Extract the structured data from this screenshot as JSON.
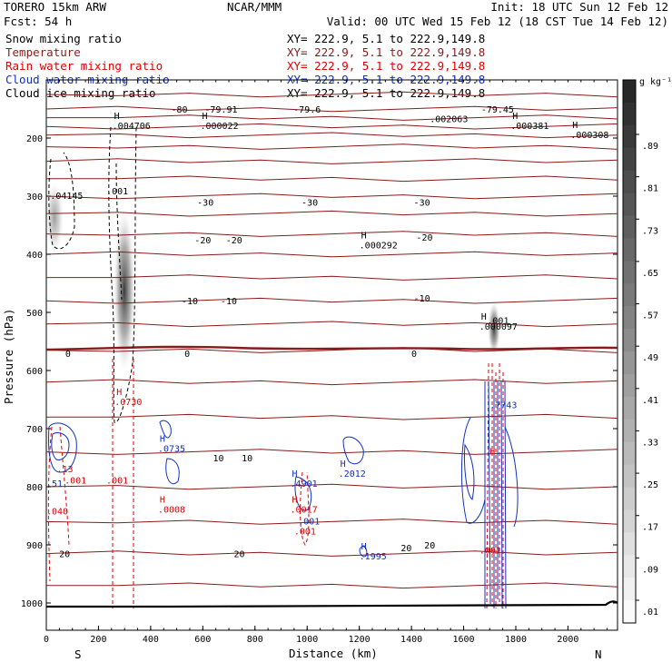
{
  "header": {
    "model": "TORERO  15km ARW",
    "org": "NCAR/MMM",
    "init": "Init: 18 UTC Sun 12 Feb 12",
    "fcst": "Fcst:   54 h",
    "valid": "Valid: 00 UTC Wed 15 Feb 12 (18 CST Tue 14 Feb 12)"
  },
  "legend": [
    {
      "name": "Snow mixing ratio",
      "xy": "XY= 222.9,  5.1 to 222.9,149.8",
      "color": "#000000"
    },
    {
      "name": "Temperature",
      "xy": "XY= 222.9,  5.1 to 222.9,149.8",
      "color": "#8b1a1a"
    },
    {
      "name": "Rain water mixing ratio",
      "xy": "XY= 222.9,  5.1 to 222.9,149.8",
      "color": "#e00000"
    },
    {
      "name": "Cloud water mixing ratio",
      "xy": "XY= 222.9,  5.1 to 222.9,149.8",
      "color": "#1030c8"
    },
    {
      "name": "Cloud ice mixing ratio",
      "xy": "XY= 222.9,  5.1 to 222.9,149.8",
      "color": "#000000"
    }
  ],
  "chart_data": {
    "type": "cross-section",
    "xlabel": "Distance (km)",
    "ylabel": "Pressure (hPa)",
    "xlim": [
      0,
      2190
    ],
    "ylim": [
      1050,
      140
    ],
    "xticks": [
      "0",
      "200",
      "400",
      "600",
      "800",
      "1000",
      "1200",
      "1400",
      "1600",
      "1800",
      "2000"
    ],
    "yticks": [
      "200",
      "300",
      "400",
      "500",
      "600",
      "700",
      "800",
      "900",
      "1000"
    ],
    "x_endpoints": {
      "left": "S",
      "right": "N"
    },
    "colorbar": {
      "unit": "g kg⁻¹",
      "labels": [
        ".89",
        ".81",
        ".73",
        ".65",
        ".57",
        ".49",
        ".41",
        ".33",
        ".25",
        ".17",
        ".09",
        ".01"
      ]
    },
    "temperature_isotherms": [
      {
        "label": "-80",
        "x": 510,
        "p": 150
      },
      {
        "label": "-79.91",
        "x": 670,
        "p": 150
      },
      {
        "label": "-79.6",
        "x": 1000,
        "p": 150
      },
      {
        "label": "-79.45",
        "x": 1730,
        "p": 150
      },
      {
        "label": "-30",
        "x": 610,
        "p": 310
      },
      {
        "label": "-30",
        "x": 1010,
        "p": 310
      },
      {
        "label": "-30",
        "x": 1440,
        "p": 310
      },
      {
        "label": "-20",
        "x": 600,
        "p": 375
      },
      {
        "label": "-20",
        "x": 720,
        "p": 375
      },
      {
        "label": "-20",
        "x": 1450,
        "p": 370
      },
      {
        "label": "-10",
        "x": 550,
        "p": 480
      },
      {
        "label": "-10",
        "x": 700,
        "p": 480
      },
      {
        "label": "-10",
        "x": 1440,
        "p": 475
      },
      {
        "label": "0",
        "x": 83,
        "p": 570
      },
      {
        "label": "0",
        "x": 540,
        "p": 570
      },
      {
        "label": "0",
        "x": 1410,
        "p": 570
      },
      {
        "label": "10",
        "x": 660,
        "p": 750
      },
      {
        "label": "10",
        "x": 770,
        "p": 750
      },
      {
        "label": "20",
        "x": 70,
        "p": 915
      },
      {
        "label": "20",
        "x": 740,
        "p": 915
      },
      {
        "label": "20",
        "x": 1380,
        "p": 905
      },
      {
        "label": "20",
        "x": 1470,
        "p": 900
      }
    ],
    "extrema_labels": [
      {
        "mark": "H",
        "value": ".004706",
        "x": 253,
        "p": 180,
        "color": "#000000"
      },
      {
        "mark": "H",
        "value": ".000022",
        "x": 590,
        "p": 180,
        "color": "#000000"
      },
      {
        "mark": "",
        "value": ".002063",
        "x": 1470,
        "p": 168,
        "color": "#000000"
      },
      {
        "mark": "H",
        "value": ".000381",
        "x": 1780,
        "p": 180,
        "color": "#000000"
      },
      {
        "mark": "H",
        "value": ".000308",
        "x": 2010,
        "p": 195,
        "color": "#000000"
      },
      {
        "mark": "",
        "value": ".04145",
        "x": 15,
        "p": 300,
        "color": "#000000"
      },
      {
        "mark": "",
        "value": ".001",
        "x": 230,
        "p": 292,
        "color": "#000000"
      },
      {
        "mark": "H",
        "value": ".000292",
        "x": 1200,
        "p": 385,
        "color": "#000000"
      },
      {
        "mark": "H",
        "value": ".000097",
        "x": 1660,
        "p": 525,
        "color": "#000000"
      },
      {
        "mark": "",
        "value": ".001",
        "x": 1690,
        "p": 515,
        "color": "#000000"
      },
      {
        "mark": "H",
        "value": ".0730",
        "x": 262,
        "p": 655,
        "color": "#e00000"
      },
      {
        "mark": "H",
        "value": ".0735",
        "x": 428,
        "p": 735,
        "color": "#1030c8"
      },
      {
        "mark": "H",
        "value": ".2012",
        "x": 1120,
        "p": 778,
        "color": "#1030c8"
      },
      {
        "mark": "H",
        "value": ".4901",
        "x": 935,
        "p": 795,
        "color": "#1030c8"
      },
      {
        "mark": "H",
        "value": ".0008",
        "x": 428,
        "p": 840,
        "color": "#e00000"
      },
      {
        "mark": "H",
        "value": ".0017",
        "x": 935,
        "p": 840,
        "color": "#e00000"
      },
      {
        "mark": "",
        "value": ".001",
        "x": 965,
        "p": 860,
        "color": "#1030c8"
      },
      {
        "mark": "",
        "value": ".001",
        "x": 950,
        "p": 877,
        "color": "#e00000"
      },
      {
        "mark": "H",
        "value": ".1995",
        "x": 1200,
        "p": 920,
        "color": "#1030c8"
      },
      {
        "mark": "",
        "value": ".001",
        "x": 230,
        "p": 790,
        "color": "#e00000"
      },
      {
        "mark": "",
        "value": ".001",
        "x": 70,
        "p": 790,
        "color": "#e00000"
      },
      {
        "mark": "",
        "value": ".13",
        "x": 40,
        "p": 770,
        "color": "#e00000"
      },
      {
        "mark": "",
        "value": ".51",
        "x": 0,
        "p": 795,
        "color": "#1030c8"
      },
      {
        "mark": "",
        "value": ".040",
        "x": 0,
        "p": 843,
        "color": "#e00000"
      },
      {
        "mark": "",
        "value": ".7743",
        "x": 1700,
        "p": 660,
        "color": "#1030c8"
      },
      {
        "mark": "",
        "value": ".001",
        "x": 1660,
        "p": 910,
        "color": "#e00000"
      },
      {
        "mark": "",
        "value": "H",
        "x": 1700,
        "p": 740,
        "color": "#e00000"
      }
    ]
  }
}
